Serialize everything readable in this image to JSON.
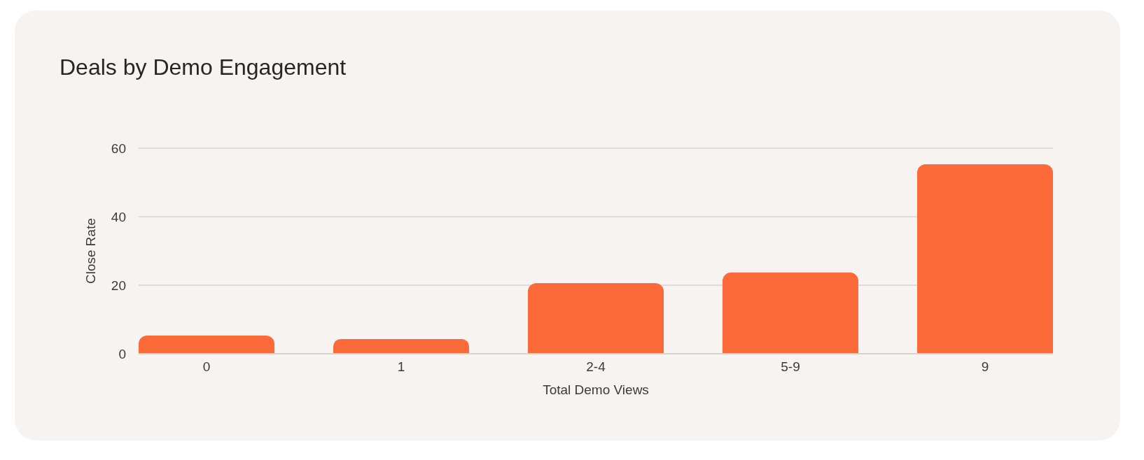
{
  "chart_data": {
    "type": "bar",
    "title": "Deals by Demo Engagement",
    "xlabel": "Total Demo Views",
    "ylabel": "Close Rate",
    "categories": [
      "0",
      "1",
      "2-4",
      "5-9",
      "9"
    ],
    "values": [
      5.3,
      4.3,
      20.6,
      23.7,
      55.3
    ],
    "color": "#fd6a3a",
    "ylim": [
      0,
      60
    ],
    "yticks": [
      0,
      20,
      40,
      60
    ],
    "grid": "y"
  }
}
